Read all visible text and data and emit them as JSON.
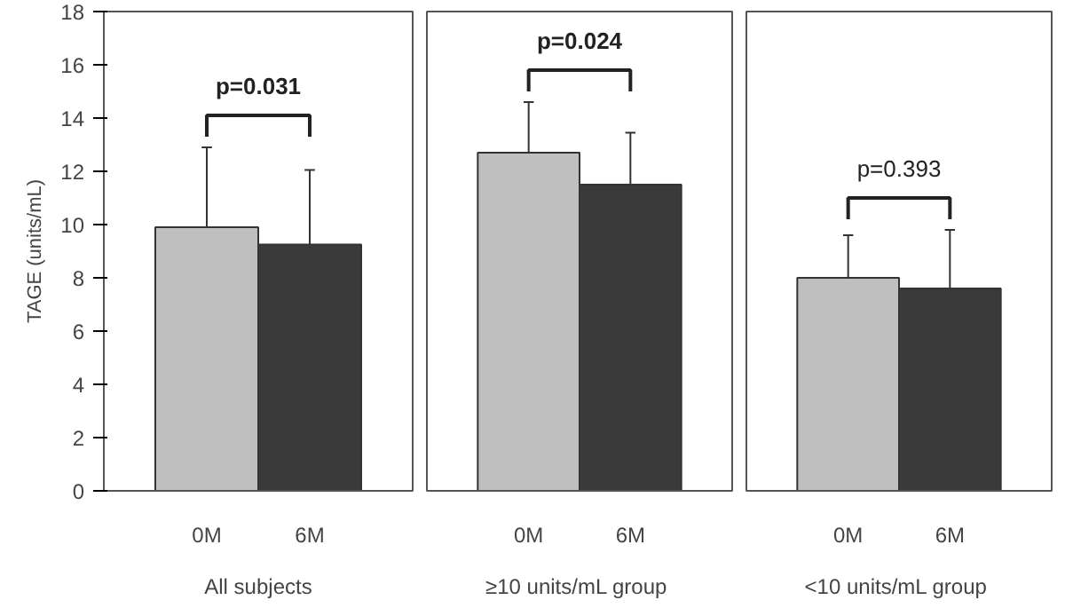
{
  "chart_data": [
    {
      "type": "bar",
      "ylabel": "TAGE (units/mL)",
      "xlabel": "All subjects",
      "categories": [
        "0M",
        "6M"
      ],
      "values": [
        9.9,
        9.25
      ],
      "colors": [
        "#bfbfbf",
        "#3a3a3a"
      ],
      "errors": [
        [
          9.9,
          12.9
        ],
        [
          9.25,
          12.05
        ]
      ],
      "ylim": [
        0,
        18
      ],
      "yticks": [
        0,
        2,
        4,
        6,
        8,
        10,
        12,
        14,
        16,
        18
      ],
      "grid": false,
      "annotations": [
        "p=0.031"
      ]
    },
    {
      "type": "bar",
      "xlabel": "≥10 units/mL  group",
      "categories": [
        "0M",
        "6M"
      ],
      "values": [
        12.7,
        11.5
      ],
      "colors": [
        "#bfbfbf",
        "#3a3a3a"
      ],
      "errors": [
        [
          12.7,
          14.6
        ],
        [
          11.5,
          13.45
        ]
      ],
      "ylim": [
        0,
        18
      ],
      "yticks": [
        0,
        2,
        4,
        6,
        8,
        10,
        12,
        14,
        16,
        18
      ],
      "grid": false,
      "tick_labels": "x",
      "annotations": [
        "p=0.024"
      ]
    },
    {
      "type": "bar",
      "xlabel": "<10 units/mL  group",
      "categories": [
        "0M",
        "6M"
      ],
      "values": [
        8.0,
        7.6
      ],
      "colors": [
        "#bfbfbf",
        "#3a3a3a"
      ],
      "errors": [
        [
          8.0,
          9.6
        ],
        [
          7.6,
          9.8
        ]
      ],
      "ylim": [
        0,
        18
      ],
      "yticks": [
        0,
        2,
        4,
        6,
        8,
        10,
        12,
        14,
        16,
        18
      ],
      "grid": false,
      "tick_labels": "x",
      "annotations": [
        "p=0.393"
      ]
    }
  ]
}
